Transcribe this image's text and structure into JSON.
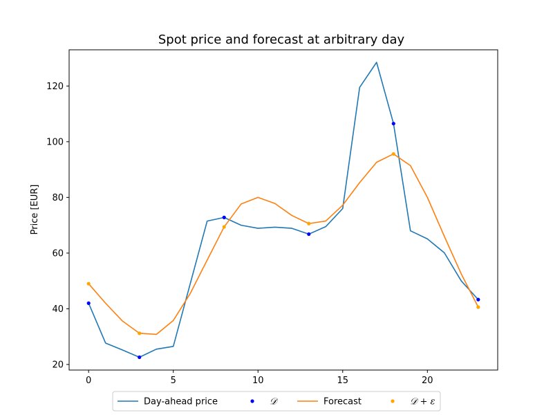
{
  "chart_data": {
    "type": "line",
    "title": "Spot price and forecast at arbitrary day",
    "xlabel": "",
    "ylabel": "Price [EUR]",
    "xlim": [
      -1.15,
      24.15
    ],
    "ylim": [
      18,
      133
    ],
    "xticks": [
      0,
      5,
      10,
      15,
      20
    ],
    "yticks": [
      20,
      40,
      60,
      80,
      100,
      120
    ],
    "grid": false,
    "legend_position": "bottom-center",
    "series": [
      {
        "name": "Day-ahead price",
        "kind": "line",
        "color": "#1f77b4",
        "x": [
          0,
          1,
          2,
          3,
          4,
          5,
          6,
          7,
          8,
          9,
          10,
          11,
          12,
          13,
          14,
          15,
          16,
          17,
          18,
          19,
          20,
          21,
          22,
          23
        ],
        "y": [
          42,
          27.7,
          25.2,
          22.6,
          25.5,
          26.5,
          49,
          71.5,
          72.8,
          70,
          68.9,
          69.3,
          68.9,
          66.8,
          69.5,
          76,
          119.5,
          128.5,
          106.5,
          68,
          65.1,
          60.1,
          50,
          43.3
        ]
      },
      {
        "name": "𝒟",
        "kind": "scatter",
        "color": "#0000ff",
        "x": [
          0,
          3,
          8,
          13,
          18,
          23
        ],
        "y": [
          42,
          22.6,
          72.8,
          66.8,
          106.5,
          43.3
        ]
      },
      {
        "name": "Forecast",
        "kind": "line",
        "color": "#ff7f0e",
        "x": [
          0,
          1,
          2,
          3,
          4,
          5,
          6,
          7,
          8,
          9,
          10,
          11,
          12,
          13,
          14,
          15,
          16,
          17,
          18,
          19,
          20,
          21,
          22,
          23
        ],
        "y": [
          49,
          42,
          35.6,
          31.2,
          30.8,
          35.8,
          45.5,
          57.5,
          69.4,
          77.6,
          80,
          77.8,
          73.5,
          70.6,
          71.5,
          77.2,
          85.3,
          92.6,
          95.6,
          91.4,
          80,
          66,
          52.5,
          40.6
        ]
      },
      {
        "name": "𝒟 + ε",
        "kind": "scatter",
        "color": "#ffa500",
        "x": [
          0,
          3,
          8,
          13,
          18,
          23
        ],
        "y": [
          49,
          31.2,
          69.4,
          70.6,
          95.6,
          40.6
        ]
      }
    ]
  }
}
